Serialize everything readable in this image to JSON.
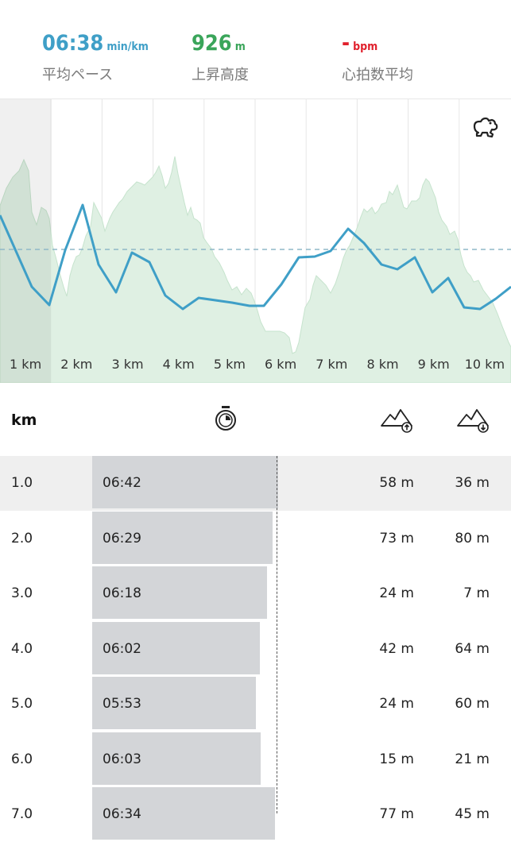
{
  "stats": {
    "pace": {
      "value": "06:38",
      "unit": "min/km",
      "label": "平均ペース",
      "color": "#3f9fc7"
    },
    "elevation": {
      "value": "926",
      "unit": "m",
      "label": "上昇高度",
      "color": "#3aa55a"
    },
    "heart_rate": {
      "value": "-",
      "unit": "bpm",
      "label": "心拍数平均",
      "color": "#e0202c"
    }
  },
  "chart": {
    "km_labels": [
      "1 km",
      "2 km",
      "3 km",
      "4 km",
      "5 km",
      "6 km",
      "7 km",
      "8 km",
      "9 km",
      "10 km"
    ],
    "selected_index": 0,
    "pace_line_color": "#3f9fc7",
    "elevation_fill_color": "#dff0e3",
    "runner_icon": "runner-toggle-icon"
  },
  "table": {
    "header": {
      "km_label": "km",
      "pace_icon": "stopwatch-icon",
      "ascent_icon": "mountain-up-icon",
      "descent_icon": "mountain-down-icon"
    },
    "average_pace_seconds": 398,
    "rows": [
      {
        "km": "1.0",
        "pace": "06:42",
        "pace_seconds": 402,
        "ascent": "58 m",
        "descent": "36 m",
        "selected": true
      },
      {
        "km": "2.0",
        "pace": "06:29",
        "pace_seconds": 389,
        "ascent": "73 m",
        "descent": "80 m",
        "selected": false
      },
      {
        "km": "3.0",
        "pace": "06:18",
        "pace_seconds": 378,
        "ascent": "24 m",
        "descent": "7 m",
        "selected": false
      },
      {
        "km": "4.0",
        "pace": "06:02",
        "pace_seconds": 362,
        "ascent": "42 m",
        "descent": "64 m",
        "selected": false
      },
      {
        "km": "5.0",
        "pace": "05:53",
        "pace_seconds": 353,
        "ascent": "24 m",
        "descent": "60 m",
        "selected": false
      },
      {
        "km": "6.0",
        "pace": "06:03",
        "pace_seconds": 363,
        "ascent": "15 m",
        "descent": "21 m",
        "selected": false
      },
      {
        "km": "7.0",
        "pace": "06:34",
        "pace_seconds": 394,
        "ascent": "77 m",
        "descent": "45 m",
        "selected": false
      }
    ]
  }
}
